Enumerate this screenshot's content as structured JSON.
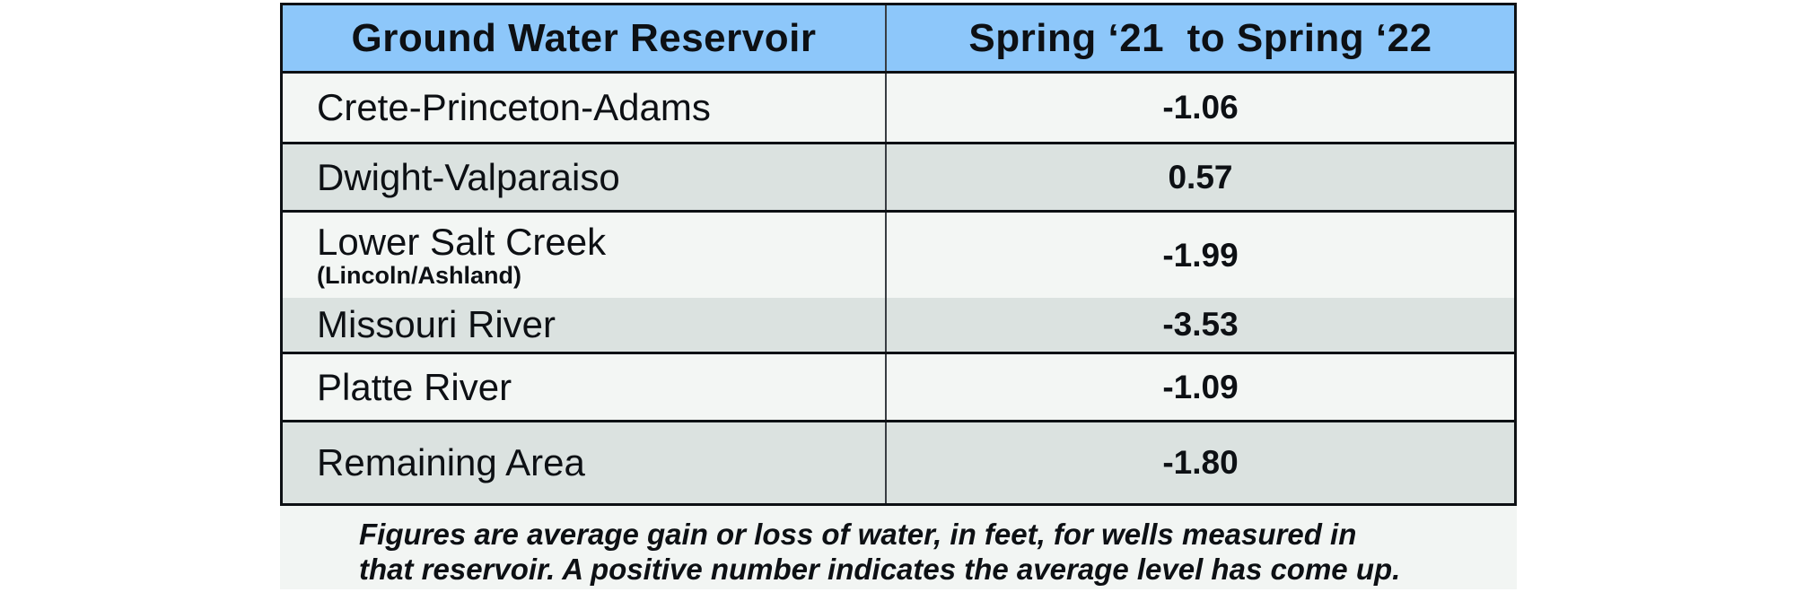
{
  "colors": {
    "header_blue": "#8dc7fa",
    "row_light": "#f3f6f4",
    "row_dark": "#dbe2e0",
    "footnote_bg": "#f2f5f3",
    "ink": "#0d1014"
  },
  "table": {
    "header": {
      "col1": "Ground Water Reservoir",
      "col2": "Spring ‘21  to Spring ‘22"
    },
    "rows": [
      {
        "name": "Crete-Princeton-Adams",
        "value": "-1.06"
      },
      {
        "name": "Dwight-Valparaiso",
        "value": "0.57"
      },
      {
        "name": "Lower Salt Creek",
        "sub": "(Lincoln/Ashland)",
        "value": "-1.99"
      },
      {
        "name": "Missouri River",
        "value": "-3.53"
      },
      {
        "name": "Platte River",
        "value": "-1.09"
      },
      {
        "name": "Remaining Area",
        "value": "-1.80"
      }
    ],
    "footnote": {
      "line1": "Figures are average gain or loss of water, in feet, for wells measured in",
      "line2": "that reservoir. A positive number indicates the average level has come up."
    }
  },
  "chart_data": {
    "type": "table",
    "title": "",
    "columns": [
      "Ground Water Reservoir",
      "Spring ‘21 to Spring ‘22"
    ],
    "rows": [
      [
        "Crete-Princeton-Adams",
        -1.06
      ],
      [
        "Dwight-Valparaiso",
        0.57
      ],
      [
        "Lower Salt Creek (Lincoln/Ashland)",
        -1.99
      ],
      [
        "Missouri River",
        -3.53
      ],
      [
        "Platte River",
        -1.09
      ],
      [
        "Remaining Area",
        -1.8
      ]
    ],
    "caption": "Figures are average gain or loss of water, in feet, for wells measured in that reservoir. A positive number indicates the average level has come up.",
    "units": "feet",
    "layout": {
      "header_fill": "#8dc7fa",
      "alternating_row_fills": [
        "#f3f6f4",
        "#dbe2e0"
      ]
    }
  }
}
